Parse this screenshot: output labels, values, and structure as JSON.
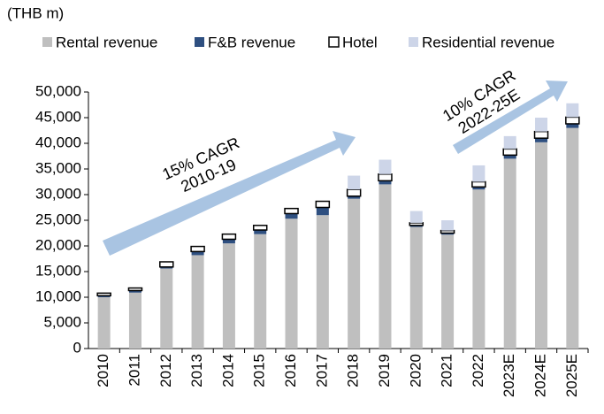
{
  "chart_data": {
    "type": "stacked_bar",
    "subtitle": "(THB m)",
    "categories": [
      "2010",
      "2011",
      "2012",
      "2013",
      "2014",
      "2015",
      "2016",
      "2017",
      "2018",
      "2019",
      "2020",
      "2021",
      "2022",
      "2023E",
      "2024E",
      "2025E"
    ],
    "series": [
      {
        "name": "Rental revenue",
        "color": "#bfbfbf",
        "values": [
          10000,
          10900,
          15600,
          18200,
          20500,
          22300,
          25300,
          26000,
          29200,
          32000,
          23700,
          22200,
          31000,
          37000,
          40200,
          43000
        ]
      },
      {
        "name": "F&B revenue",
        "color": "#2e4f80",
        "values": [
          300,
          400,
          300,
          700,
          800,
          800,
          1000,
          1500,
          500,
          700,
          300,
          300,
          500,
          700,
          800,
          800
        ]
      },
      {
        "name": "Hotel",
        "color": "#ffffff",
        "values": [
          500,
          500,
          1000,
          1000,
          1000,
          900,
          1000,
          1200,
          1300,
          1300,
          500,
          500,
          1000,
          1200,
          1300,
          1300
        ]
      },
      {
        "name": "Residential revenue",
        "color": "#cdd5e8",
        "values": [
          0,
          0,
          0,
          0,
          0,
          0,
          0,
          0,
          2700,
          2800,
          2300,
          2000,
          3200,
          2500,
          2700,
          2700
        ]
      }
    ],
    "ylim": [
      0,
      50000
    ],
    "yticks": [
      0,
      {
        "value": 5000,
        "label": "5,000"
      },
      {
        "value": 10000,
        "label": "10,000"
      },
      {
        "value": 15000,
        "label": "15,000"
      },
      {
        "value": 20000,
        "label": "20,000"
      },
      {
        "value": 25000,
        "label": "25,000"
      },
      {
        "value": 30000,
        "label": "30,000"
      },
      {
        "value": 35000,
        "label": "35,000"
      },
      {
        "value": 40000,
        "label": "40,000"
      },
      {
        "value": 45000,
        "label": "45,000"
      },
      {
        "value": 50000,
        "label": "50,000"
      }
    ],
    "annotations": [
      {
        "lines": [
          "15% CAGR",
          "2010-19"
        ]
      },
      {
        "lines": [
          "10% CAGR",
          "2022-25E"
        ]
      }
    ]
  }
}
